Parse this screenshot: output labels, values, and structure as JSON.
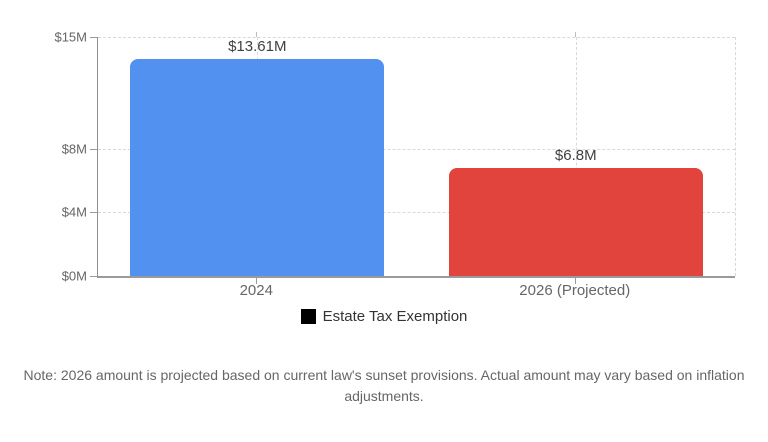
{
  "chart_data": {
    "type": "bar",
    "categories": [
      "2024",
      "2026 (Projected)"
    ],
    "values": [
      13.61,
      6.8
    ],
    "value_labels": [
      "$13.61M",
      "$6.8M"
    ],
    "bar_colors": [
      "#5391F0",
      "#E0443D"
    ],
    "ylim": [
      0,
      15
    ],
    "y_ticks": [
      {
        "label": "$15M",
        "value": 15
      },
      {
        "label": "$8M",
        "value": 8
      },
      {
        "label": "$4M",
        "value": 4
      },
      {
        "label": "$0M",
        "value": 0
      }
    ],
    "grid": {
      "dashed": true,
      "show": true
    },
    "legend": {
      "label": "Estate Tax Exemption",
      "swatch_color": "#000000",
      "position": "bottom"
    }
  },
  "note": {
    "lines": [
      "Note: 2026 amount is projected based on current law's sunset provisions. Actual amount may vary based on inflation",
      "adjustments."
    ]
  },
  "colors": {
    "background": "#ffffff",
    "grid": "#d9d9d9",
    "axis": "#9a9a9a",
    "tick_label": "#666666",
    "value_label": "#404040",
    "category_label": "#666666",
    "legend_text": "#333333",
    "note_text": "#666666"
  }
}
